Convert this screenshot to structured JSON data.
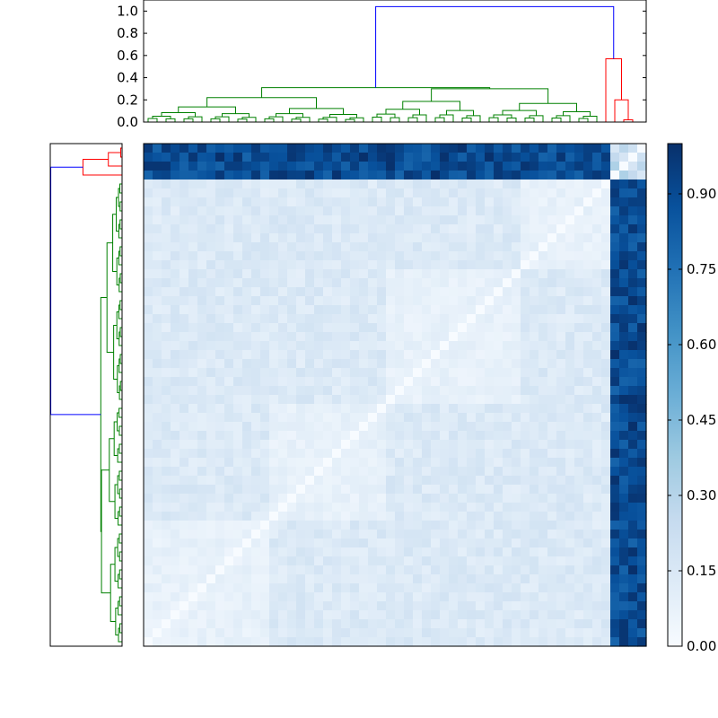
{
  "chart_data": [
    {
      "type": "dendrogram",
      "orientation": "top",
      "n_leaves": 56,
      "ylim": [
        0,
        1.1
      ],
      "yticks": [
        "0.0",
        "0.2",
        "0.4",
        "0.6",
        "0.8",
        "1.0"
      ],
      "link_colors": {
        "root": "#0000ff",
        "outlier_cluster": "#ff0000",
        "main_cluster": "#008000"
      },
      "root_merge_height": 1.04,
      "outlier_cluster": [
        {
          "left": 53,
          "right": 54,
          "height": 0.02
        },
        {
          "left": 52,
          "right": "53-54",
          "height": 0.2
        },
        {
          "left": 51,
          "right": "52-54",
          "height": 0.57
        }
      ],
      "main_cluster_top_height": 0.31,
      "main_cluster_sub_heights": [
        0.3,
        0.22,
        0.2,
        0.16,
        0.14,
        0.12
      ]
    },
    {
      "type": "dendrogram",
      "orientation": "left",
      "n_leaves": 56,
      "link_colors": {
        "root": "#0000ff",
        "outlier_cluster": "#ff0000",
        "main_cluster": "#008000"
      }
    },
    {
      "type": "heatmap",
      "rows": 56,
      "cols": 56,
      "zlim": [
        0.0,
        1.0
      ],
      "colormap": "Blues",
      "diagonal_value": 0.0,
      "block_boundaries": [
        14,
        27,
        42,
        52
      ],
      "outlier_indices": [
        52,
        53,
        54,
        55
      ],
      "block_values": {
        "within_block": 0.05,
        "between_blocks": 0.14,
        "outlier_to_main": 0.9,
        "outlier_to_outlier": 0.25
      }
    },
    {
      "type": "colorbar",
      "range": [
        0.0,
        1.0
      ],
      "ticks": [
        0.0,
        0.15,
        0.3,
        0.45,
        0.6,
        0.75,
        0.9
      ],
      "tick_labels": [
        "0.00",
        "0.15",
        "0.30",
        "0.45",
        "0.60",
        "0.75",
        "0.90"
      ]
    }
  ]
}
